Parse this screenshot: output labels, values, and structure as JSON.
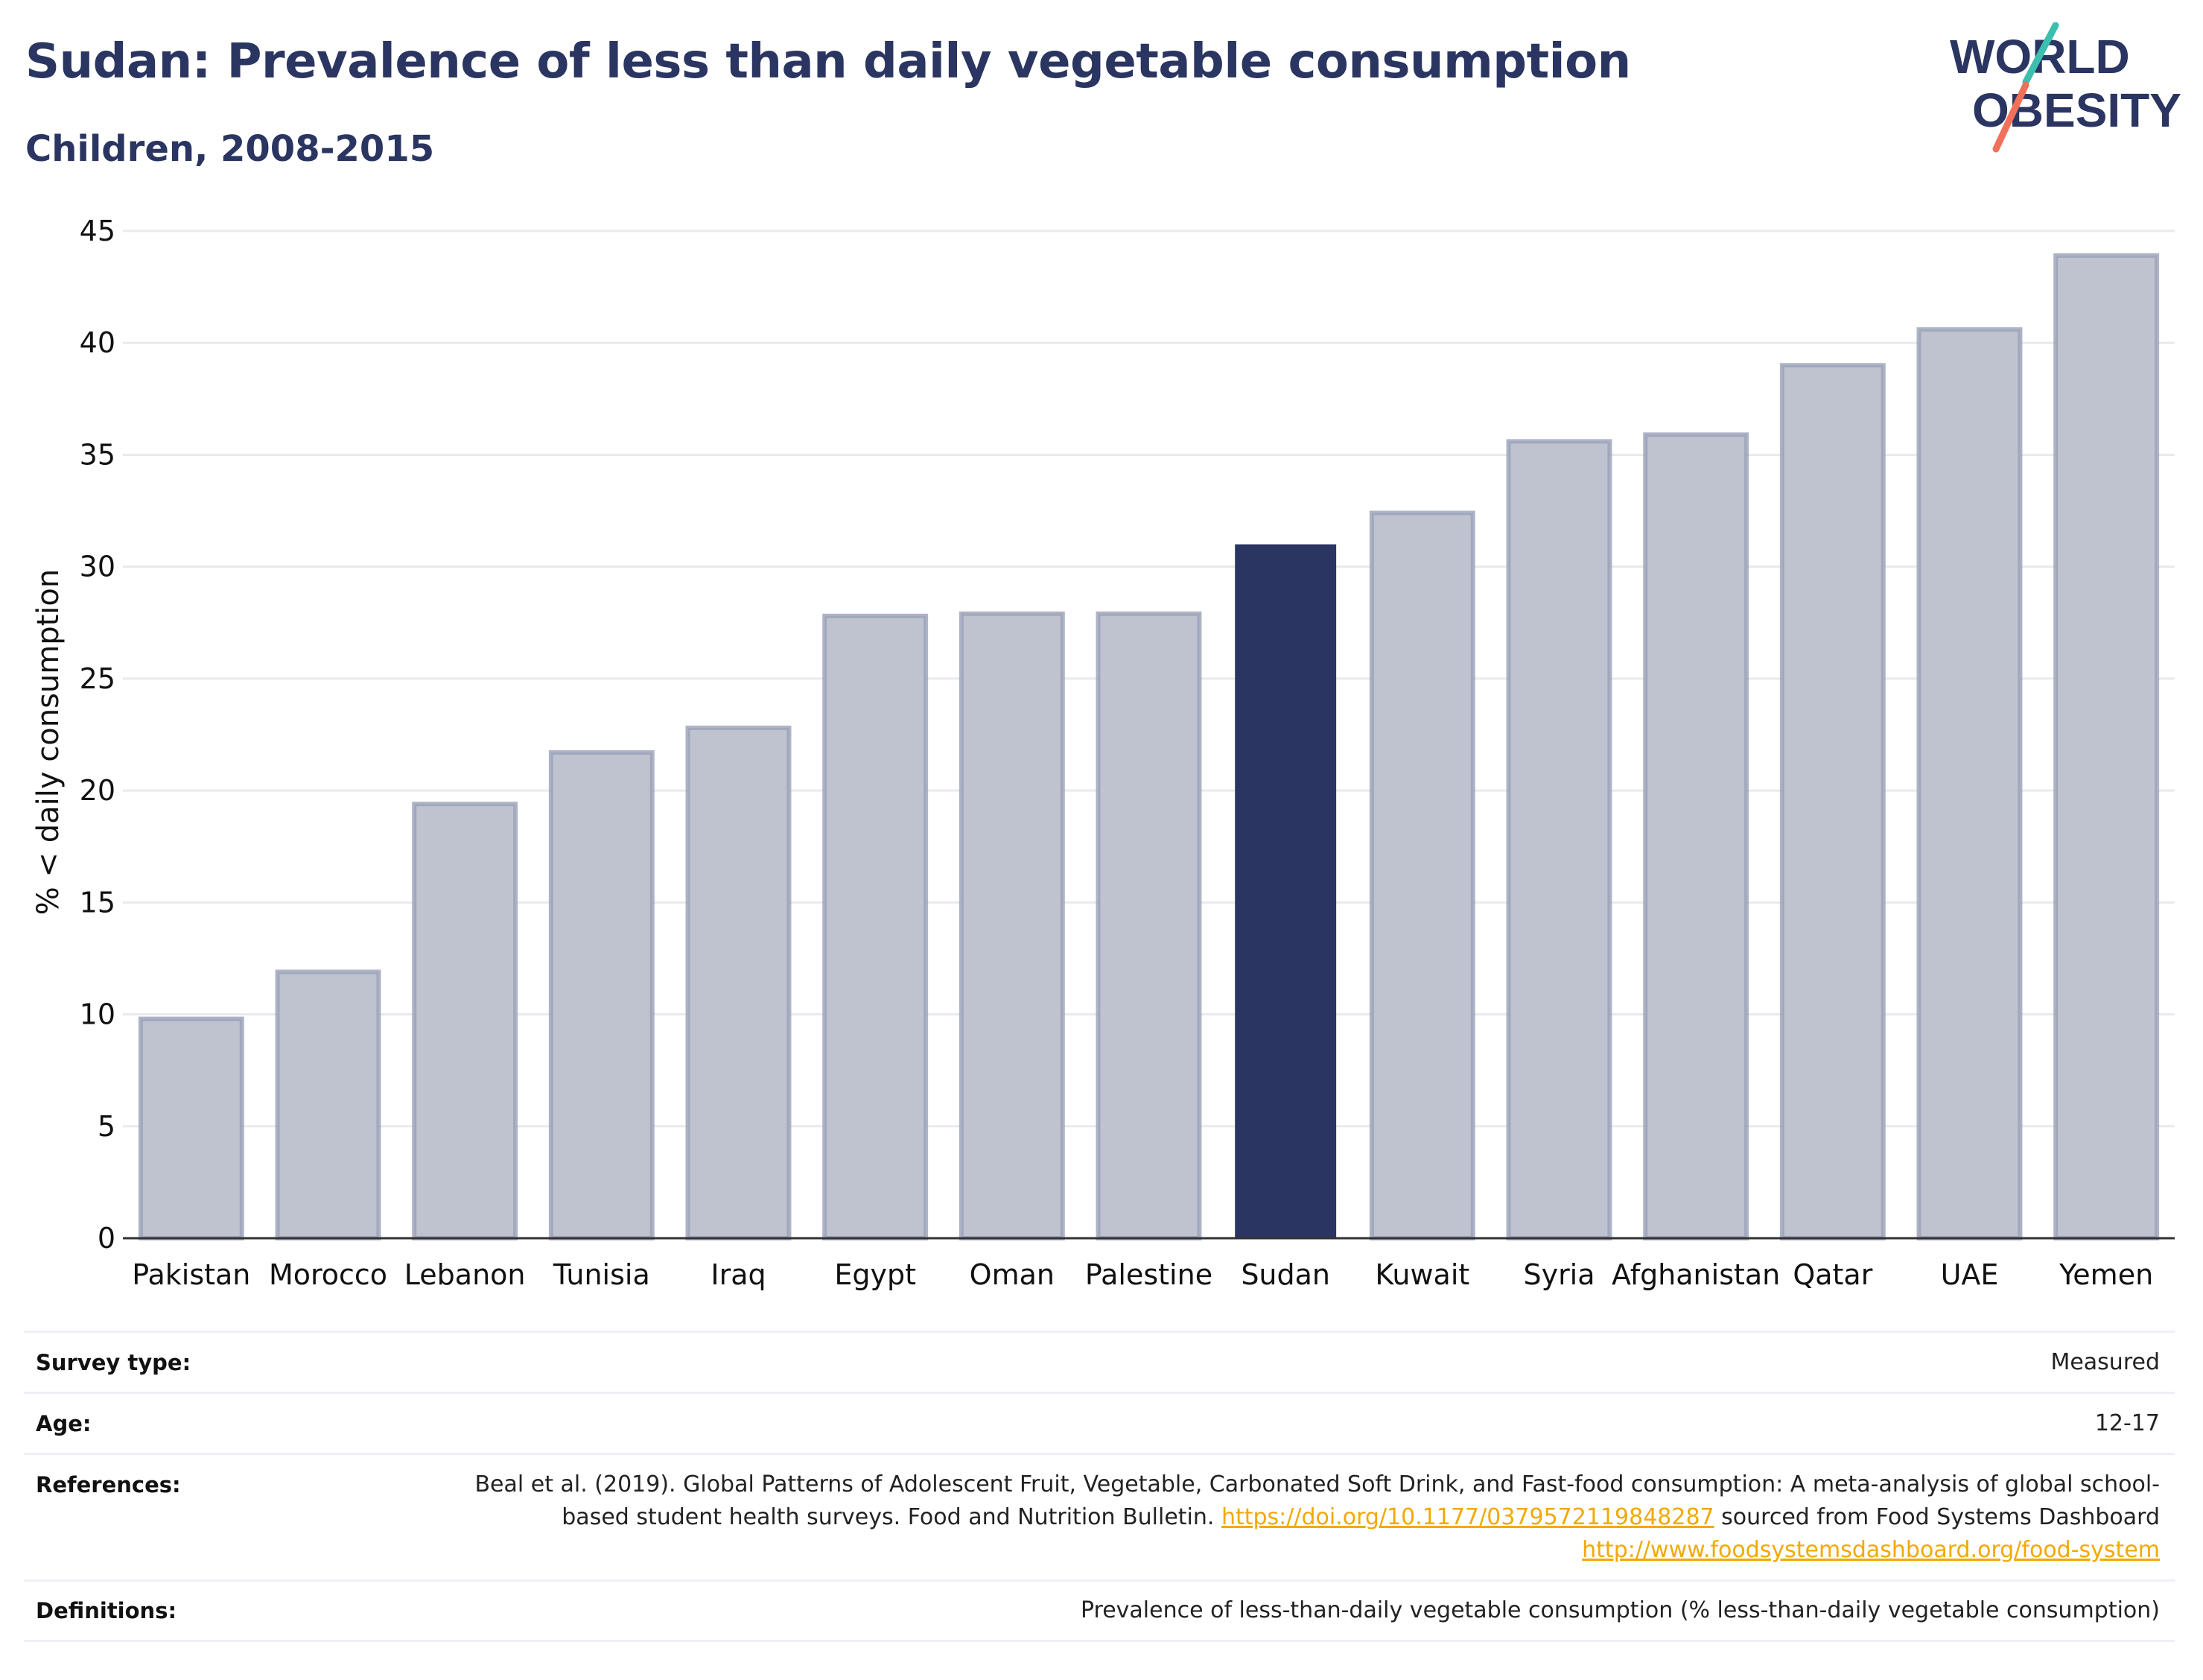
{
  "header": {
    "title": "Sudan: Prevalence of less than daily vegetable consumption",
    "subtitle": "Children, 2008-2015"
  },
  "logo": {
    "line1": "WORLD",
    "line2": "OBESITY",
    "text_color": "#2a3561",
    "slash_colors": [
      "#3cbfae",
      "#f0705a"
    ]
  },
  "chart_data": {
    "type": "bar",
    "categories": [
      "Pakistan",
      "Morocco",
      "Lebanon",
      "Tunisia",
      "Iraq",
      "Egypt",
      "Oman",
      "Palestine",
      "Sudan",
      "Kuwait",
      "Syria",
      "Afghanistan",
      "Qatar",
      "UAE",
      "Yemen"
    ],
    "values": [
      9.8,
      11.9,
      19.4,
      21.7,
      22.8,
      27.8,
      27.9,
      27.9,
      31.0,
      32.4,
      35.6,
      35.9,
      39.0,
      40.6,
      43.9
    ],
    "highlight": "Sudan",
    "ylabel": "% < daily consumption",
    "xlabel": "",
    "ylim": [
      0,
      45
    ],
    "yticks": [
      0,
      5,
      10,
      15,
      20,
      25,
      30,
      35,
      40,
      45
    ],
    "grid": true,
    "colors": {
      "bar": "#bfc3cf",
      "bar_border": "#9aa1b8",
      "highlight": "#2a3561",
      "grid": "#e8eaf0",
      "axis": "#333333"
    }
  },
  "meta": {
    "survey_type": {
      "label": "Survey type:",
      "value": "Measured"
    },
    "age": {
      "label": "Age:",
      "value": "12-17"
    },
    "references": {
      "label": "References:",
      "text1": "Beal et al. (2019). Global Patterns of Adolescent Fruit, Vegetable, Carbonated Soft Drink, and Fast-food consumption: A meta-analysis of global school-based student health surveys. Food and Nutrition Bulletin. ",
      "link1": "https://doi.org/10.1177/0379572119848287",
      "text2": " sourced from Food Systems Dashboard ",
      "link2": "http://www.foodsystemsdashboard.org/food-system",
      "link_color": "#f2a900"
    },
    "definitions": {
      "label": "Definitions:",
      "value": "Prevalence of less-than-daily vegetable consumption (% less-than-daily vegetable consumption)"
    }
  }
}
